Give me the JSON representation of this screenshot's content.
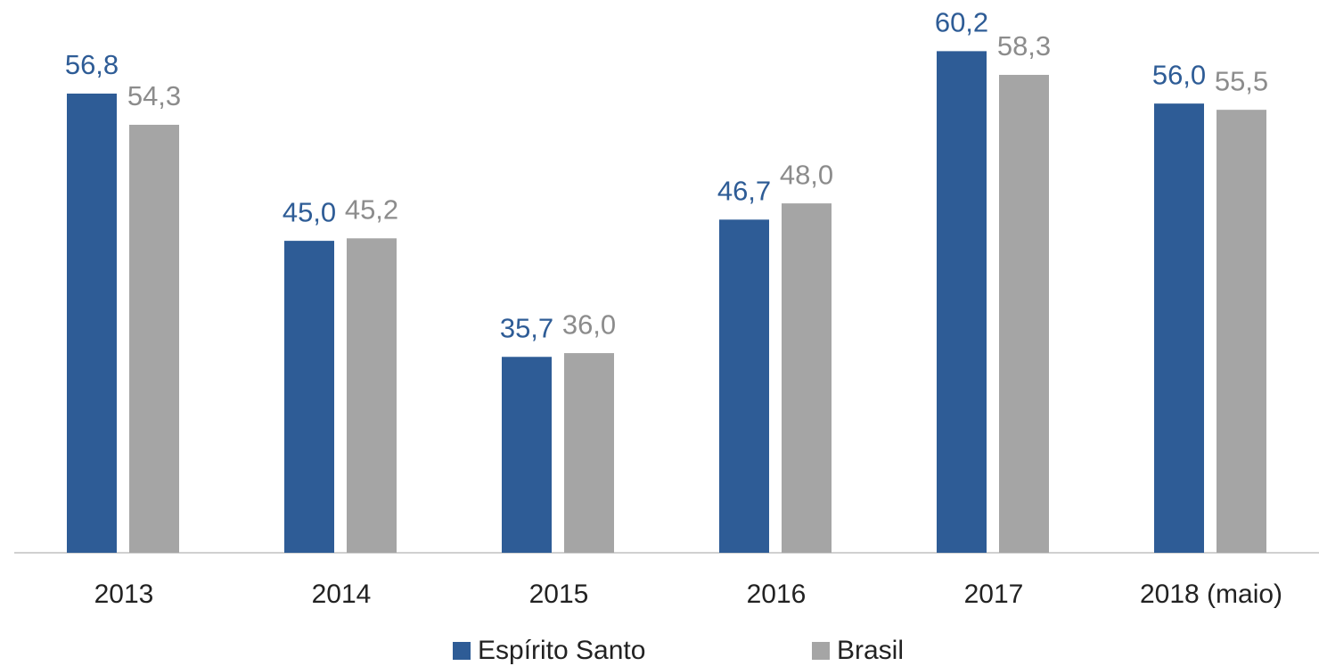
{
  "chart_data": {
    "type": "bar",
    "categories": [
      "2013",
      "2014",
      "2015",
      "2016",
      "2017",
      "2018 (maio)"
    ],
    "series": [
      {
        "name": "Espírito Santo",
        "color": "#2e5c96",
        "values": [
          56.8,
          45.0,
          35.7,
          46.7,
          60.2,
          56.0
        ],
        "value_labels": [
          "56,8",
          "45,0",
          "35,7",
          "46,7",
          "60,2",
          "56,0"
        ]
      },
      {
        "name": "Brasil",
        "color": "#a5a5a5",
        "values": [
          54.3,
          45.2,
          36.0,
          48.0,
          58.3,
          55.5
        ],
        "value_labels": [
          "54,3",
          "45,2",
          "36,0",
          "48,0",
          "58,3",
          "55,5"
        ]
      }
    ],
    "ylim": [
      20,
      64.3
    ],
    "legend": "bottom"
  }
}
